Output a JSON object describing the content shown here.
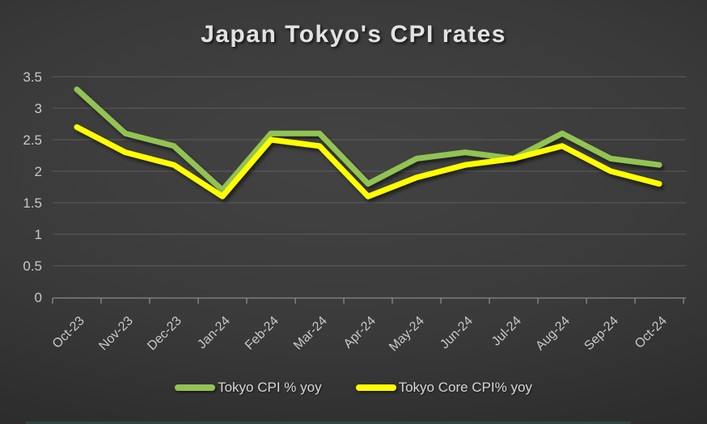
{
  "chart_data": {
    "type": "line",
    "title": "Japan Tokyo's CPI rates",
    "categories": [
      "Oct-23",
      "Nov-23",
      "Dec-23",
      "Jan-24",
      "Feb-24",
      "Mar-24",
      "Apr-24",
      "May-24",
      "Jun-24",
      "Jul-24",
      "Aug-24",
      "Sep-24",
      "Oct-24"
    ],
    "series": [
      {
        "name": "Tokyo CPI % yoy",
        "color": "#92c353",
        "values": [
          3.3,
          2.6,
          2.4,
          1.7,
          2.6,
          2.6,
          1.8,
          2.2,
          2.3,
          2.2,
          2.6,
          2.2,
          2.1
        ]
      },
      {
        "name": "Tokyo Core CPI% yoy",
        "color": "#ffff00",
        "values": [
          2.7,
          2.3,
          2.1,
          1.6,
          2.5,
          2.4,
          1.6,
          1.9,
          2.1,
          2.2,
          2.4,
          2.0,
          1.8
        ]
      }
    ],
    "xlabel": "",
    "ylabel": "",
    "ylim": [
      0,
      3.5
    ],
    "yticks": [
      0,
      0.5,
      1,
      1.5,
      2,
      2.5,
      3,
      3.5
    ],
    "grid": "horizontal",
    "legend_position": "bottom"
  },
  "colors": {
    "background_center": "#3f3f3f",
    "background_edge": "#262626",
    "series_green": "#92c353",
    "series_yellow": "#ffff00",
    "gridline": "#5e5e5e",
    "axis_text": "#c9c9c9",
    "title_text": "#e2e2e2"
  }
}
